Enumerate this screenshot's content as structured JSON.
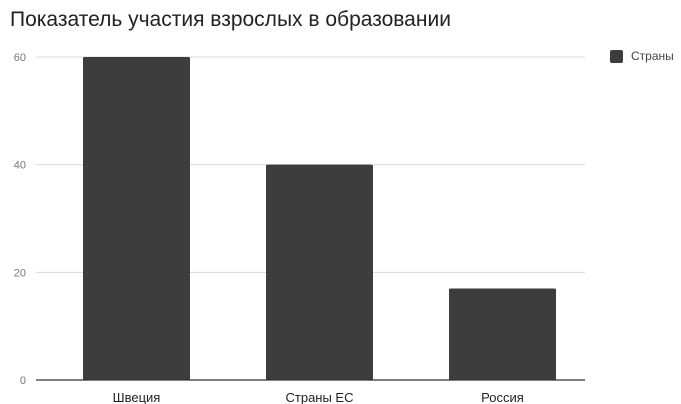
{
  "colors": {
    "bar": "#3d3d3d",
    "grid": "#d9d9d9",
    "axis": "#333333",
    "text": "#222222",
    "tick": "#777777"
  },
  "chart_data": {
    "type": "bar",
    "title": "Показатель участия взрослых в образовании",
    "xlabel": "",
    "ylabel": "",
    "categories": [
      "Швеция",
      "Страны ЕС",
      "Россия"
    ],
    "series": [
      {
        "name": "Страны",
        "values": [
          60,
          40,
          17
        ]
      }
    ],
    "ylim": [
      0,
      60
    ],
    "yticks": [
      0,
      20,
      40,
      60
    ],
    "grid": true,
    "legend": "top-right"
  }
}
